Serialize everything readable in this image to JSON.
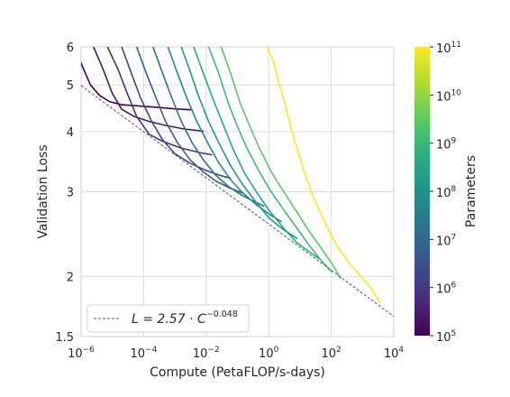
{
  "chart_data": {
    "type": "line",
    "title": "",
    "xlabel": "Compute (PetaFLOP/s-days)",
    "ylabel": "Validation Loss",
    "x_scale": "log",
    "y_scale": "log",
    "xlim": [
      1e-06,
      10000
    ],
    "ylim": [
      1.5,
      6
    ],
    "x_ticks": [
      {
        "value": 1e-06,
        "base": "10",
        "exp": "−6"
      },
      {
        "value": 0.0001,
        "base": "10",
        "exp": "−4"
      },
      {
        "value": 0.01,
        "base": "10",
        "exp": "−2"
      },
      {
        "value": 1,
        "base": "10",
        "exp": "0"
      },
      {
        "value": 100,
        "base": "10",
        "exp": "2"
      },
      {
        "value": 10000,
        "base": "10",
        "exp": "4"
      }
    ],
    "y_ticks": [
      {
        "value": 1.5,
        "label": "1.5"
      },
      {
        "value": 2,
        "label": "2"
      },
      {
        "value": 3,
        "label": "3"
      },
      {
        "value": 4,
        "label": "4"
      },
      {
        "value": 5,
        "label": "5"
      },
      {
        "value": 6,
        "label": "6"
      }
    ],
    "grid": true,
    "legend": {
      "position": "lower-left",
      "entries": [
        {
          "label_main": "L = 2.57 · C",
          "label_exp": "−0.048",
          "style": "dashed",
          "color": "#555555"
        }
      ]
    },
    "fit_line": {
      "coefficient": 2.57,
      "exponent": -0.048
    },
    "colorbar": {
      "label": "Parameters",
      "scale": "log",
      "colormap": "viridis",
      "range": [
        100000,
        100000000000
      ],
      "ticks": [
        {
          "value": 100000,
          "base": "10",
          "exp": "5"
        },
        {
          "value": 1000000,
          "base": "10",
          "exp": "6"
        },
        {
          "value": 10000000,
          "base": "10",
          "exp": "7"
        },
        {
          "value": 100000000,
          "base": "10",
          "exp": "8"
        },
        {
          "value": 1000000000,
          "base": "10",
          "exp": "9"
        },
        {
          "value": 10000000000,
          "base": "10",
          "exp": "10"
        },
        {
          "value": 100000000000,
          "base": "10",
          "exp": "11"
        }
      ]
    },
    "series": [
      {
        "parameters": 100000,
        "points": [
          [
            6e-07,
            6.0
          ],
          [
            1e-06,
            5.55
          ],
          [
            2e-06,
            5.0
          ],
          [
            4e-06,
            4.75
          ],
          [
            8e-06,
            4.62
          ],
          [
            2e-05,
            4.55
          ],
          [
            8e-05,
            4.52
          ],
          [
            0.0003,
            4.49
          ],
          [
            0.001,
            4.46
          ],
          [
            0.0035,
            4.44
          ]
        ]
      },
      {
        "parameters": 250000,
        "points": [
          [
            2.5e-06,
            6.0
          ],
          [
            5e-06,
            5.4
          ],
          [
            1e-05,
            4.8
          ],
          [
            2e-05,
            4.45
          ],
          [
            5e-05,
            4.3
          ],
          [
            0.00015,
            4.2
          ],
          [
            0.0005,
            4.12
          ],
          [
            0.002,
            4.05
          ],
          [
            0.008,
            4.01
          ]
        ]
      },
      {
        "parameters": 700000,
        "points": [
          [
            7e-06,
            6.0
          ],
          [
            1.5e-05,
            5.4
          ],
          [
            3e-05,
            4.8
          ],
          [
            6e-05,
            4.3
          ],
          [
            0.00015,
            3.95
          ],
          [
            0.0004,
            3.82
          ],
          [
            0.0015,
            3.7
          ],
          [
            0.006,
            3.62
          ],
          [
            0.015,
            3.58
          ]
        ]
      },
      {
        "parameters": 2000000,
        "points": [
          [
            2e-05,
            6.0
          ],
          [
            4e-05,
            5.3
          ],
          [
            8e-05,
            4.7
          ],
          [
            0.00018,
            4.2
          ],
          [
            0.0004,
            3.85
          ],
          [
            0.001,
            3.6
          ],
          [
            0.003,
            3.44
          ],
          [
            0.01,
            3.32
          ],
          [
            0.03,
            3.24
          ],
          [
            0.06,
            3.2
          ]
        ]
      },
      {
        "parameters": 6000000,
        "points": [
          [
            6e-05,
            6.0
          ],
          [
            0.00012,
            5.3
          ],
          [
            0.00025,
            4.7
          ],
          [
            0.0005,
            4.2
          ],
          [
            0.0012,
            3.8
          ],
          [
            0.003,
            3.5
          ],
          [
            0.008,
            3.3
          ],
          [
            0.02,
            3.16
          ],
          [
            0.06,
            3.05
          ],
          [
            0.15,
            2.98
          ]
        ]
      },
      {
        "parameters": 20000000,
        "points": [
          [
            0.0002,
            6.0
          ],
          [
            0.0004,
            5.3
          ],
          [
            0.0008,
            4.7
          ],
          [
            0.0016,
            4.2
          ],
          [
            0.0035,
            3.8
          ],
          [
            0.008,
            3.5
          ],
          [
            0.02,
            3.25
          ],
          [
            0.05,
            3.08
          ],
          [
            0.15,
            2.94
          ],
          [
            0.4,
            2.85
          ],
          [
            0.7,
            2.8
          ]
        ]
      },
      {
        "parameters": 60000000,
        "points": [
          [
            0.0006,
            6.0
          ],
          [
            0.0012,
            5.3
          ],
          [
            0.0024,
            4.7
          ],
          [
            0.005,
            4.2
          ],
          [
            0.011,
            3.8
          ],
          [
            0.025,
            3.45
          ],
          [
            0.06,
            3.18
          ],
          [
            0.15,
            2.98
          ],
          [
            0.4,
            2.82
          ],
          [
            1.0,
            2.7
          ],
          [
            2.5,
            2.6
          ]
        ]
      },
      {
        "parameters": 150000000,
        "points": [
          [
            0.0016,
            6.0
          ],
          [
            0.0032,
            5.3
          ],
          [
            0.006,
            4.7
          ],
          [
            0.012,
            4.2
          ],
          [
            0.025,
            3.8
          ],
          [
            0.06,
            3.4
          ],
          [
            0.15,
            3.1
          ],
          [
            0.4,
            2.85
          ],
          [
            1.0,
            2.65
          ],
          [
            3.0,
            2.5
          ],
          [
            8.0,
            2.4
          ]
        ]
      },
      {
        "parameters": 400000000,
        "points": [
          [
            0.004,
            6.0
          ],
          [
            0.008,
            5.3
          ],
          [
            0.016,
            4.7
          ],
          [
            0.032,
            4.2
          ],
          [
            0.07,
            3.7
          ],
          [
            0.16,
            3.3
          ],
          [
            0.4,
            3.0
          ],
          [
            1.0,
            2.75
          ],
          [
            3.0,
            2.52
          ],
          [
            8.0,
            2.35
          ],
          [
            20.0,
            2.25
          ],
          [
            40.0,
            2.18
          ]
        ]
      },
      {
        "parameters": 1200000000,
        "points": [
          [
            0.012,
            6.0
          ],
          [
            0.025,
            5.3
          ],
          [
            0.05,
            4.6
          ],
          [
            0.1,
            4.1
          ],
          [
            0.2,
            3.7
          ],
          [
            0.5,
            3.3
          ],
          [
            1.2,
            3.0
          ],
          [
            3.0,
            2.75
          ],
          [
            8.0,
            2.52
          ],
          [
            20.0,
            2.32
          ],
          [
            50.0,
            2.15
          ],
          [
            100.0,
            2.05
          ]
        ]
      },
      {
        "parameters": 3000000000,
        "points": [
          [
            0.03,
            6.0
          ],
          [
            0.06,
            5.3
          ],
          [
            0.12,
            4.6
          ],
          [
            0.25,
            4.1
          ],
          [
            0.5,
            3.7
          ],
          [
            1.2,
            3.3
          ],
          [
            3.0,
            3.0
          ],
          [
            8.0,
            2.72
          ],
          [
            20.0,
            2.48
          ],
          [
            50.0,
            2.28
          ],
          [
            120.0,
            2.1
          ],
          [
            200.0,
            1.98
          ]
        ]
      },
      {
        "parameters": 175000000000,
        "points": [
          [
            0.9,
            6.0
          ],
          [
            1.4,
            5.6
          ],
          [
            2.2,
            5.0
          ],
          [
            3.5,
            4.5
          ],
          [
            5.5,
            4.0
          ],
          [
            9.0,
            3.6
          ],
          [
            16.0,
            3.2
          ],
          [
            32.0,
            2.85
          ],
          [
            70.0,
            2.55
          ],
          [
            150.0,
            2.32
          ],
          [
            400.0,
            2.12
          ],
          [
            900.0,
            2.0
          ],
          [
            1800.0,
            1.9
          ],
          [
            3500.0,
            1.77
          ]
        ]
      }
    ]
  }
}
